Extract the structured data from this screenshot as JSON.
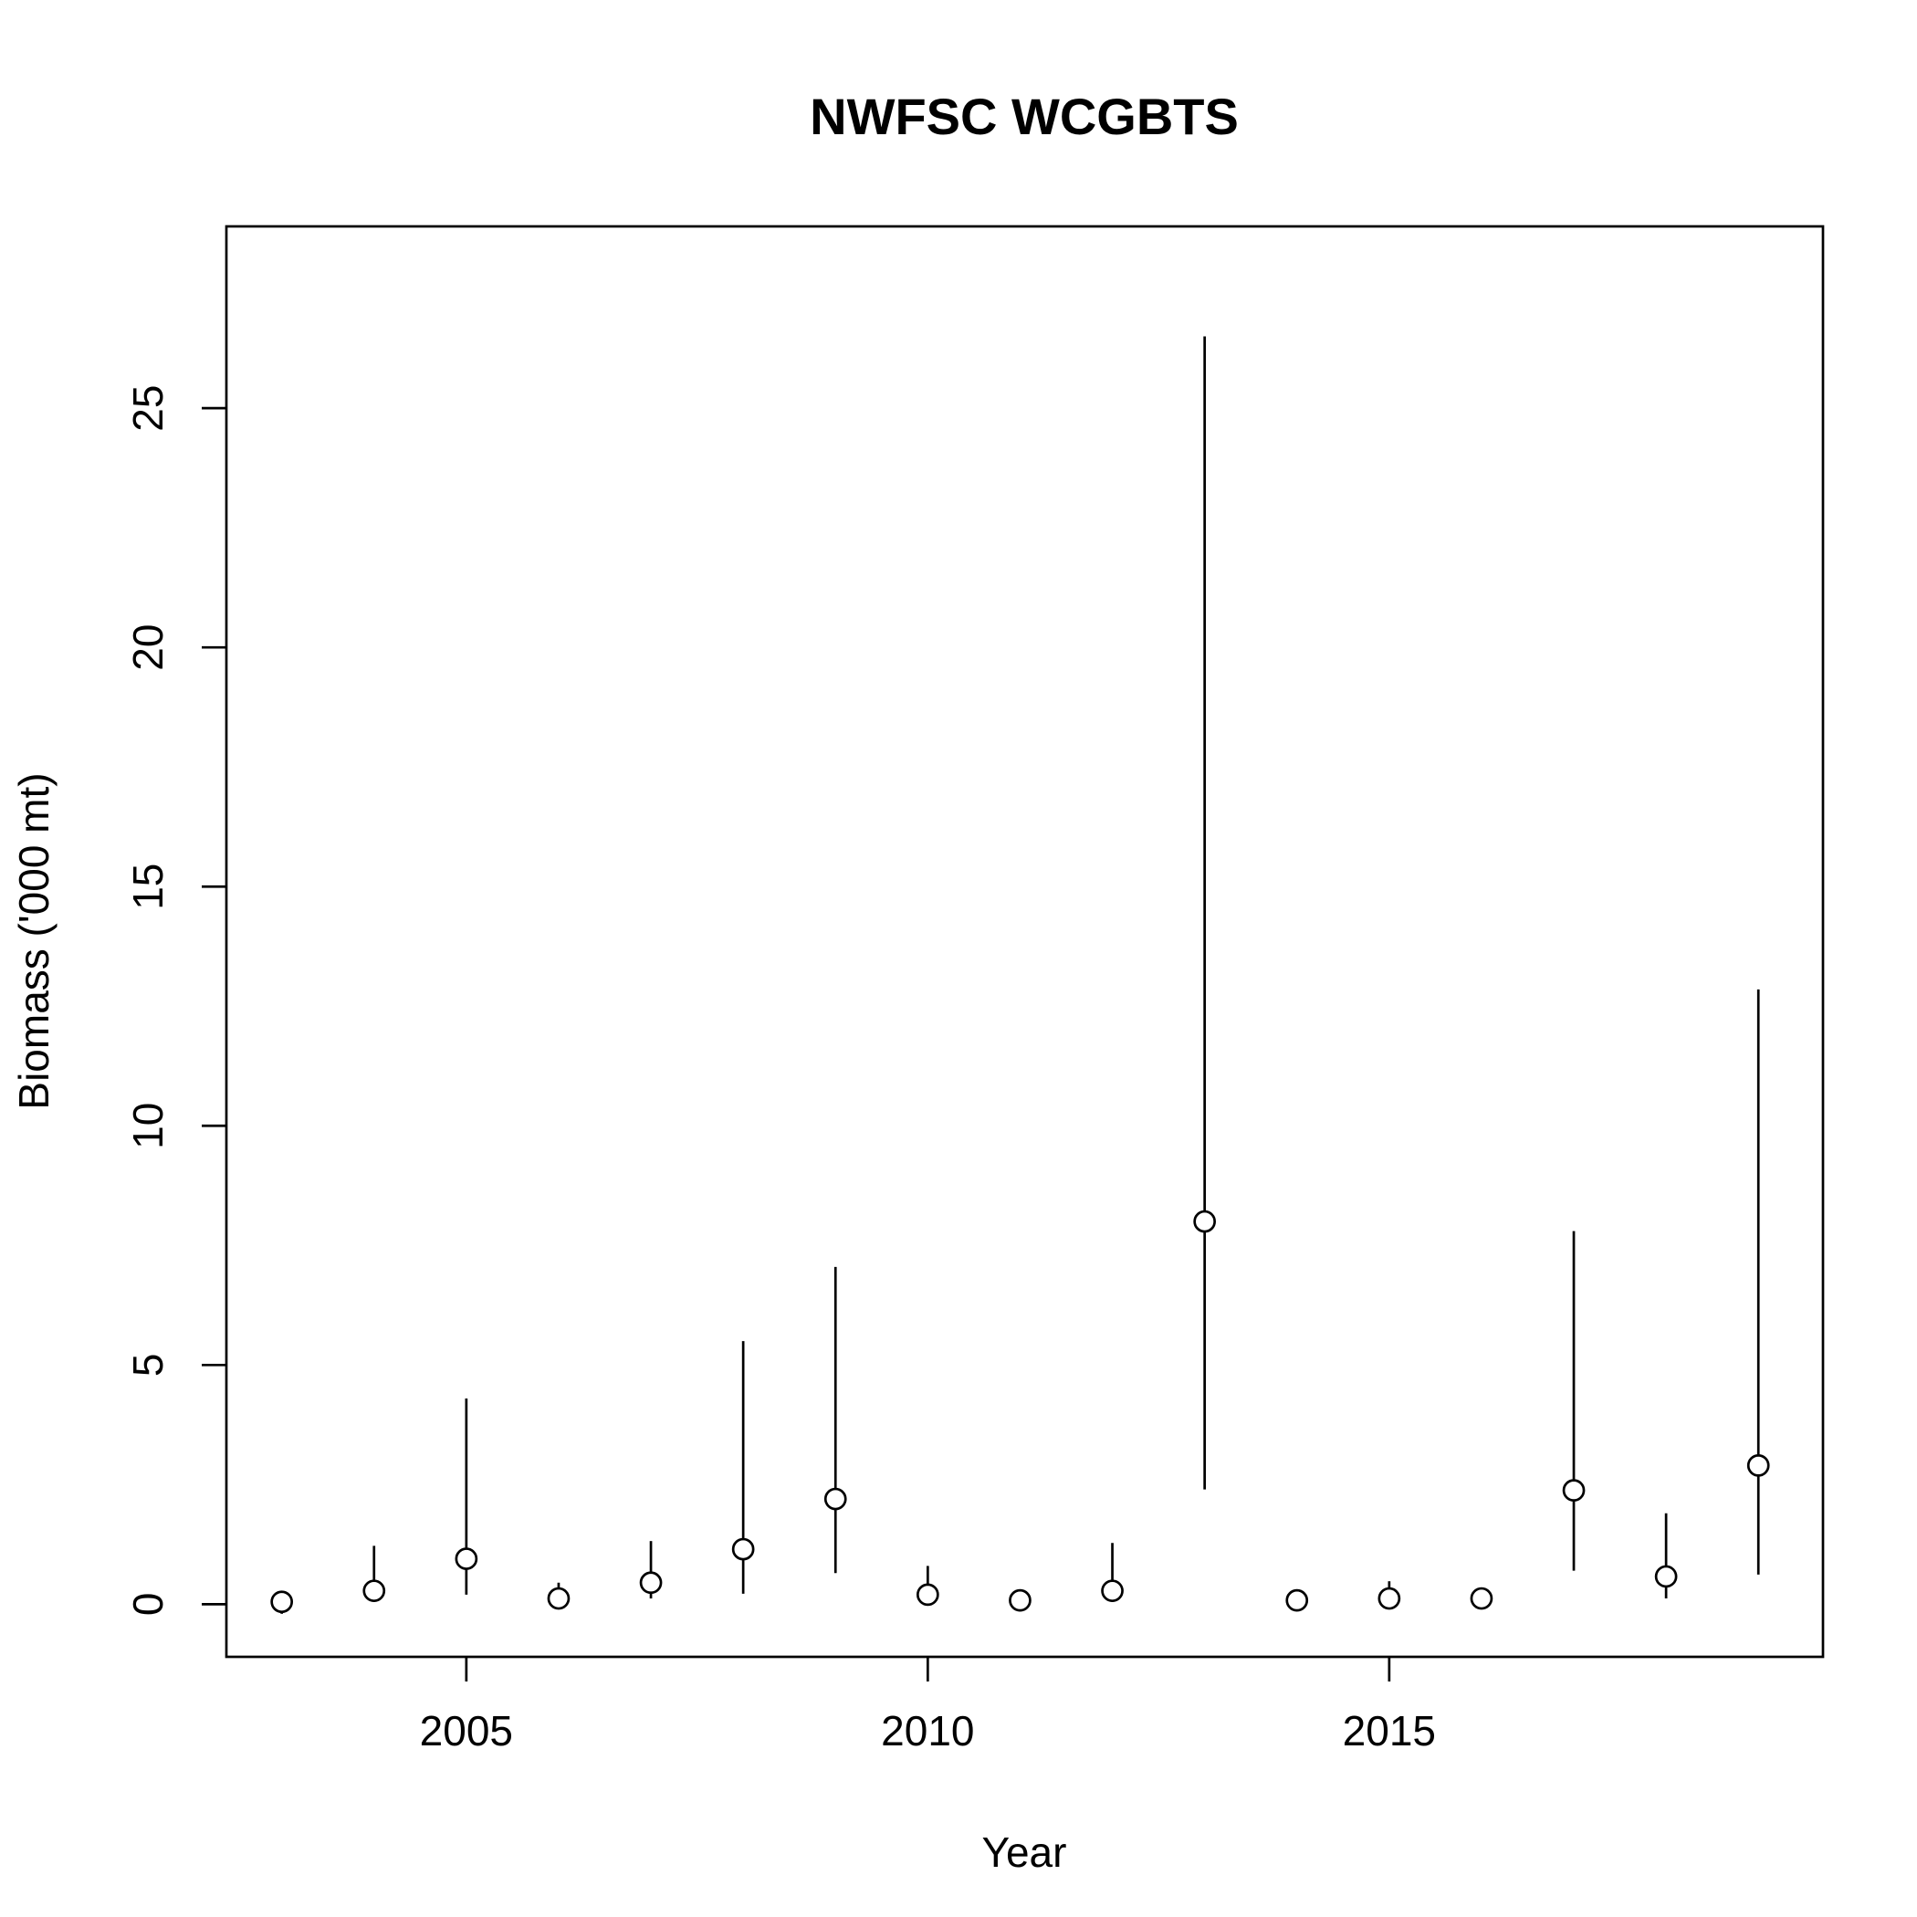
{
  "chart_data": {
    "type": "scatter",
    "title": "NWFSC WCGBTS",
    "xlabel": "Year",
    "ylabel": "Biomass ('000 mt)",
    "xlim": [
      2002.4,
      2019.7
    ],
    "ylim": [
      -1.1,
      28.8
    ],
    "xticks": [
      2005,
      2010,
      2015
    ],
    "yticks": [
      0,
      5,
      10,
      15,
      20,
      25
    ],
    "grid": false,
    "series": [
      {
        "x": [
          2003,
          2004,
          2005,
          2006,
          2007,
          2008,
          2009,
          2010,
          2011,
          2012,
          2013,
          2014,
          2015,
          2016,
          2017,
          2018,
          2019
        ],
        "y": [
          0.05,
          0.28,
          0.95,
          0.12,
          0.45,
          1.15,
          2.2,
          0.2,
          0.08,
          0.28,
          8.0,
          0.08,
          0.12,
          0.12,
          2.38,
          0.58,
          2.9
        ],
        "lower": [
          -0.2,
          0.05,
          0.2,
          0.02,
          0.12,
          0.22,
          0.65,
          0.05,
          -0.15,
          0.05,
          2.4,
          0.0,
          0.05,
          -0.05,
          0.7,
          0.12,
          0.62
        ],
        "upper": [
          0.15,
          1.22,
          4.3,
          0.45,
          1.32,
          5.5,
          7.05,
          0.8,
          0.25,
          1.28,
          26.5,
          0.25,
          0.48,
          0.25,
          7.8,
          1.9,
          12.85
        ]
      }
    ]
  }
}
